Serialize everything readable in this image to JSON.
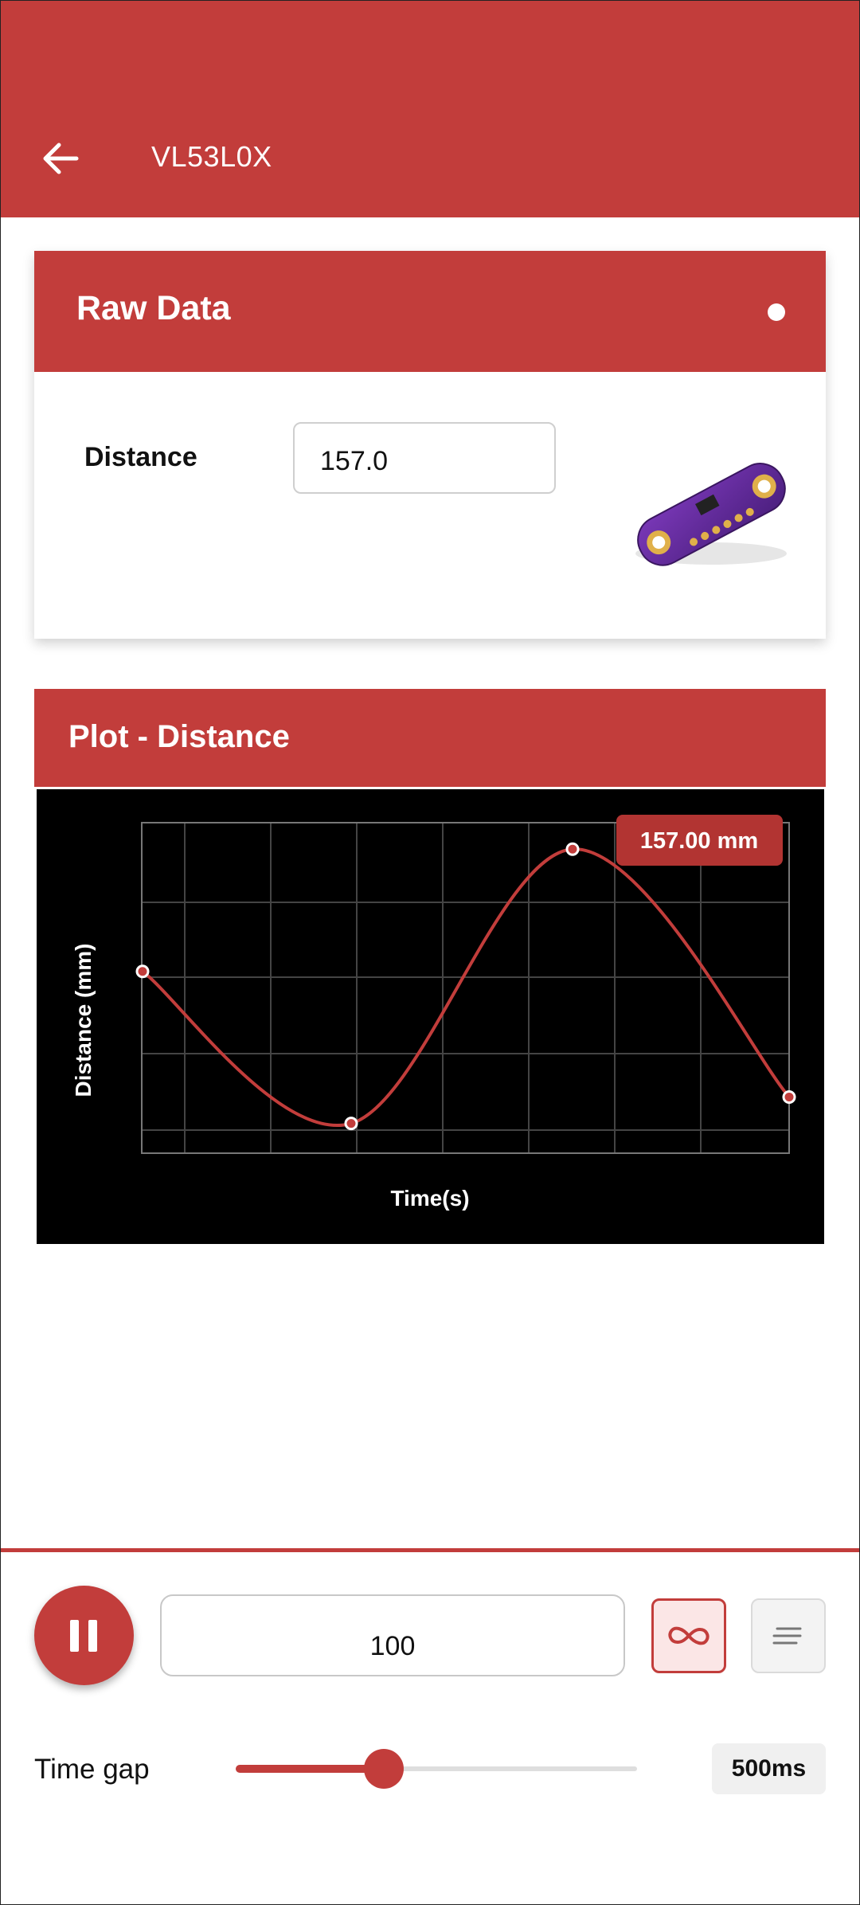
{
  "appbar": {
    "title": "VL53L0X"
  },
  "raw_data": {
    "title": "Raw Data",
    "distance_label": "Distance",
    "distance_value": "157.0"
  },
  "plot": {
    "title": "Plot - Distance",
    "ylabel": "Distance (mm)",
    "xlabel": "Time(s)",
    "tooltip": "157.00 mm"
  },
  "chart_data": {
    "type": "line",
    "title": "Plot - Distance",
    "xlabel": "Time(s)",
    "ylabel": "Distance (mm)",
    "x": [
      0,
      1,
      2,
      3
    ],
    "y": [
      0.55,
      0.09,
      0.92,
      0.17
    ],
    "grid": true,
    "tooltip": "157.00 mm"
  },
  "controls": {
    "count_value": "100",
    "time_gap_label": "Time gap",
    "time_gap_value": "500ms",
    "time_gap_fraction": 0.37
  },
  "colors": {
    "accent": "#C23D3B"
  }
}
